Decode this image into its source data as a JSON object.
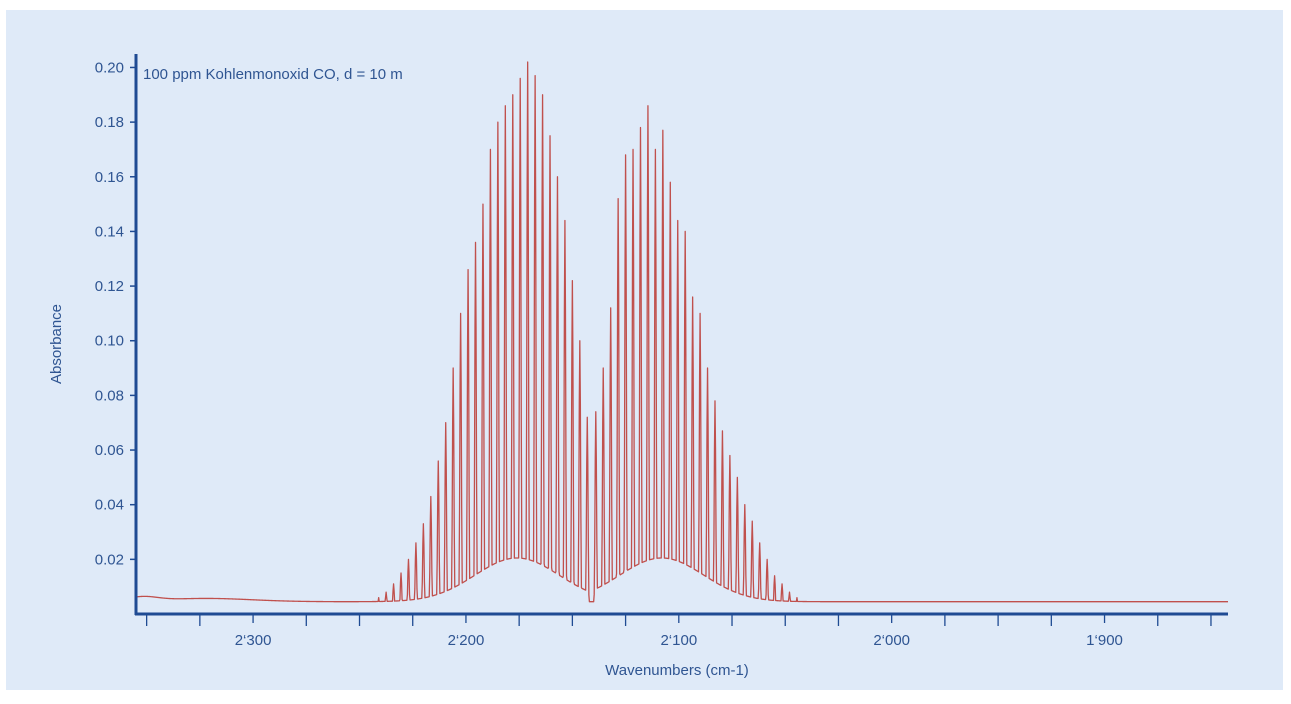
{
  "chart_data": {
    "type": "line",
    "annotation": "100 ppm Kohlenmonoxid CO, d = 10 m",
    "xlabel": "Wavenumbers (cm-1)",
    "ylabel": "Absorbance",
    "xlim": [
      2355,
      1842
    ],
    "ylim": [
      0.0,
      0.202
    ],
    "x_ticks": [
      2300,
      2200,
      2100,
      2000,
      1900
    ],
    "x_tick_labels": [
      "2‘300",
      "2‘200",
      "2‘100",
      "2‘000",
      "1‘900"
    ],
    "x_minor_ticks": [
      2350,
      2325,
      2275,
      2250,
      2225,
      2175,
      2150,
      2125,
      2075,
      2050,
      2025,
      1975,
      1950,
      1925,
      1875,
      1850
    ],
    "y_ticks": [
      0.02,
      0.04,
      0.06,
      0.08,
      0.1,
      0.12,
      0.14,
      0.16,
      0.18,
      0.2
    ],
    "y_tick_labels": [
      "0.02",
      "0.04",
      "0.06",
      "0.08",
      "0.10",
      "0.12",
      "0.14",
      "0.16",
      "0.18",
      "0.20"
    ],
    "grid": false,
    "series": [
      {
        "color": "#c0504d",
        "baseline": 0.0045,
        "r_branch_lines": [
          {
            "x": 2143,
            "y": 0.072
          },
          {
            "x": 2146.5,
            "y": 0.1
          },
          {
            "x": 2150,
            "y": 0.122
          },
          {
            "x": 2153.5,
            "y": 0.144
          },
          {
            "x": 2157,
            "y": 0.16
          },
          {
            "x": 2160.5,
            "y": 0.175
          },
          {
            "x": 2164,
            "y": 0.19
          },
          {
            "x": 2167.5,
            "y": 0.197
          },
          {
            "x": 2171,
            "y": 0.202
          },
          {
            "x": 2174.5,
            "y": 0.196
          },
          {
            "x": 2178,
            "y": 0.19
          },
          {
            "x": 2181.5,
            "y": 0.186
          },
          {
            "x": 2185,
            "y": 0.18
          },
          {
            "x": 2188.5,
            "y": 0.17
          },
          {
            "x": 2192,
            "y": 0.15
          },
          {
            "x": 2195.5,
            "y": 0.136
          },
          {
            "x": 2199,
            "y": 0.126
          },
          {
            "x": 2202.5,
            "y": 0.11
          },
          {
            "x": 2206,
            "y": 0.09
          },
          {
            "x": 2209.5,
            "y": 0.07
          },
          {
            "x": 2213,
            "y": 0.056
          },
          {
            "x": 2216.5,
            "y": 0.043
          },
          {
            "x": 2220,
            "y": 0.033
          },
          {
            "x": 2223.5,
            "y": 0.026
          },
          {
            "x": 2227,
            "y": 0.02
          },
          {
            "x": 2230.5,
            "y": 0.015
          },
          {
            "x": 2234,
            "y": 0.011
          },
          {
            "x": 2237.5,
            "y": 0.008
          },
          {
            "x": 2241,
            "y": 0.006
          }
        ],
        "p_branch_lines": [
          {
            "x": 2139,
            "y": 0.074
          },
          {
            "x": 2135.5,
            "y": 0.09
          },
          {
            "x": 2132,
            "y": 0.112
          },
          {
            "x": 2128.5,
            "y": 0.152
          },
          {
            "x": 2125,
            "y": 0.168
          },
          {
            "x": 2121.5,
            "y": 0.17
          },
          {
            "x": 2118,
            "y": 0.178
          },
          {
            "x": 2114.5,
            "y": 0.186
          },
          {
            "x": 2111,
            "y": 0.17
          },
          {
            "x": 2107.5,
            "y": 0.177
          },
          {
            "x": 2104,
            "y": 0.158
          },
          {
            "x": 2100.5,
            "y": 0.144
          },
          {
            "x": 2097,
            "y": 0.14
          },
          {
            "x": 2093.5,
            "y": 0.116
          },
          {
            "x": 2090,
            "y": 0.11
          },
          {
            "x": 2086.5,
            "y": 0.09
          },
          {
            "x": 2083,
            "y": 0.078
          },
          {
            "x": 2079.5,
            "y": 0.067
          },
          {
            "x": 2076,
            "y": 0.058
          },
          {
            "x": 2072.5,
            "y": 0.05
          },
          {
            "x": 2069,
            "y": 0.04
          },
          {
            "x": 2065.5,
            "y": 0.034
          },
          {
            "x": 2062,
            "y": 0.026
          },
          {
            "x": 2058.5,
            "y": 0.02
          },
          {
            "x": 2055,
            "y": 0.014
          },
          {
            "x": 2051.5,
            "y": 0.011
          },
          {
            "x": 2048,
            "y": 0.008
          },
          {
            "x": 2044.5,
            "y": 0.006
          }
        ]
      }
    ]
  }
}
